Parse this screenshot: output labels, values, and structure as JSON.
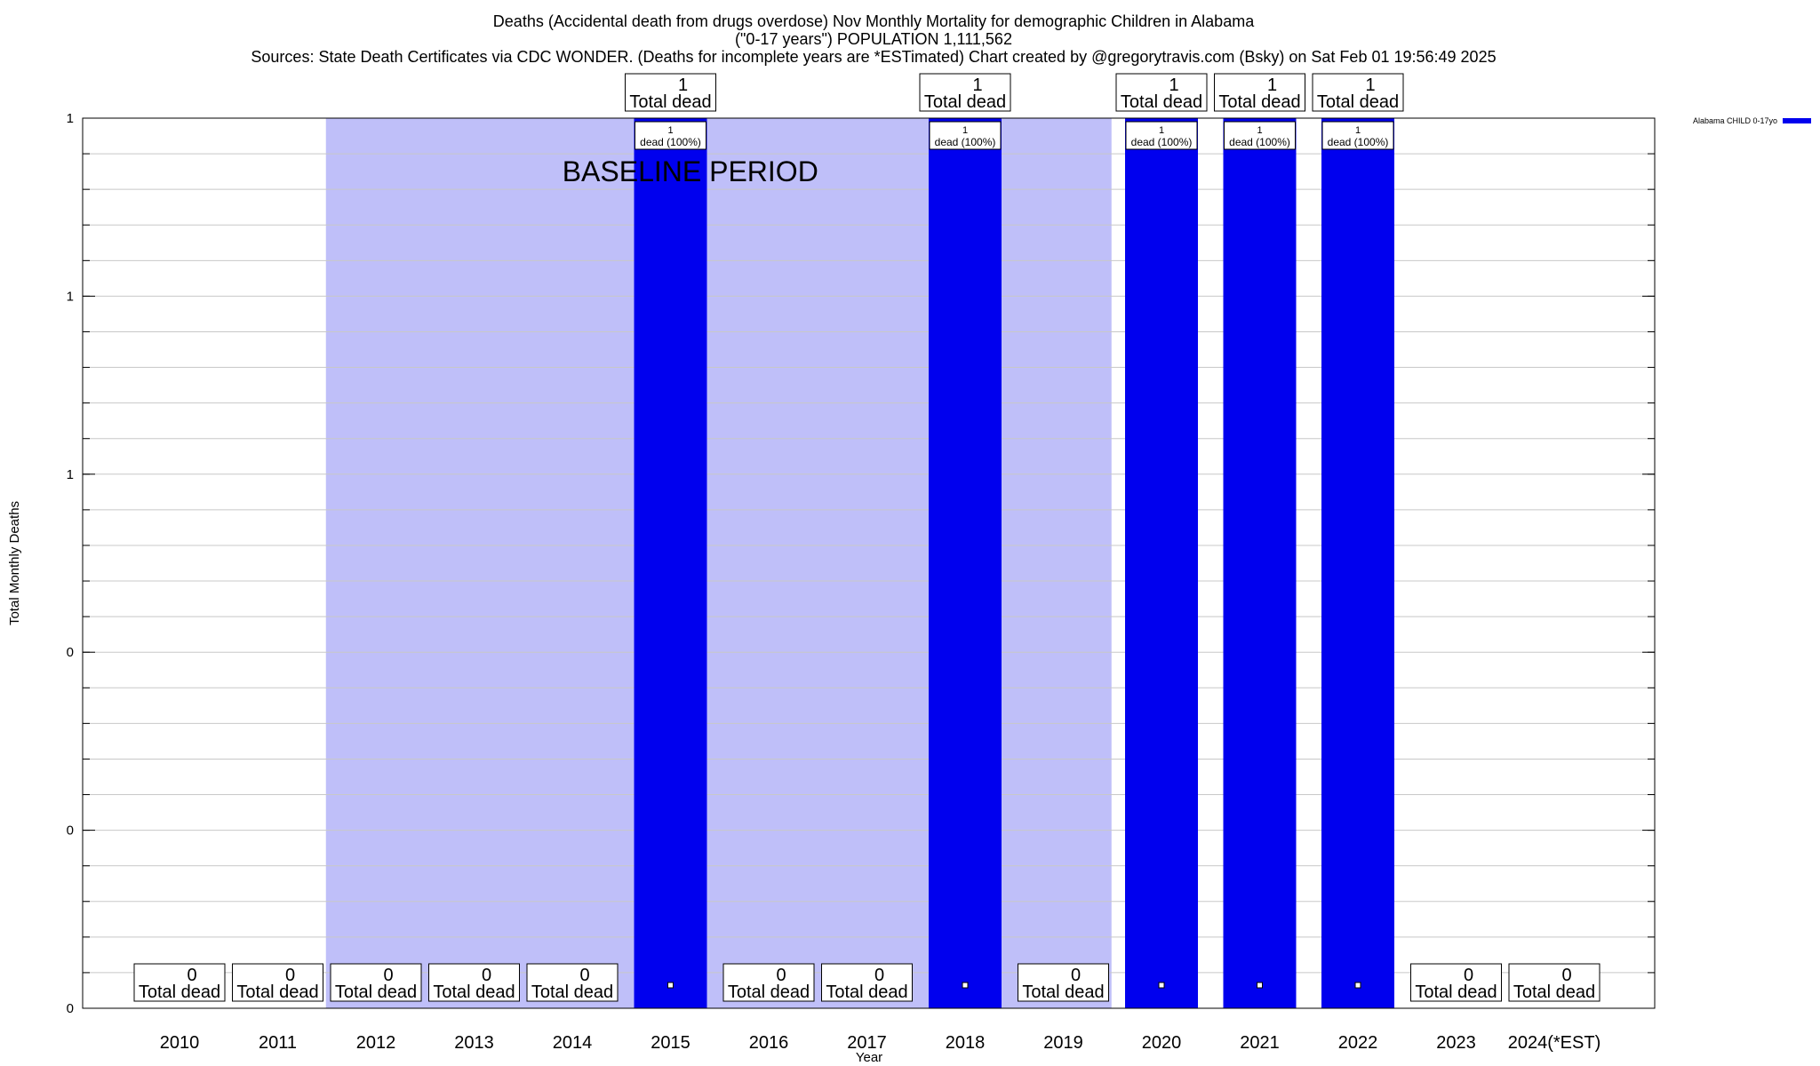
{
  "header": {
    "title_line1": "Deaths (Accidental death from drugs overdose) Nov Monthly Mortality for demographic Children in Alabama",
    "title_line2": "(\"0-17 years\") POPULATION 1,111,562",
    "title_line3": "Sources: State Death Certificates via CDC WONDER. (Deaths for incomplete years are *ESTimated)          Chart created by @gregorytravis.com (Bsky) on Sat Feb 01 19:56:49 2025"
  },
  "legend": {
    "label": "Alabama CHILD 0-17yo"
  },
  "colors": {
    "bar": "#0000ee",
    "baseline_band": "#bfbff9",
    "grid": "#c8c8c8"
  },
  "chart_data": {
    "type": "bar",
    "title": "Deaths (Accidental death from drugs overdose) Nov Monthly Mortality for demographic Children in Alabama",
    "xlabel": "Year",
    "ylabel": "Total Monthly Deaths",
    "categories": [
      "2010",
      "2011",
      "2012",
      "2013",
      "2014",
      "2015",
      "2016",
      "2017",
      "2018",
      "2019",
      "2020",
      "2021",
      "2022",
      "2023",
      "2024(*EST)"
    ],
    "series": [
      {
        "name": "Alabama CHILD 0-17yo",
        "values": [
          0,
          0,
          0,
          0,
          0,
          1,
          0,
          0,
          1,
          0,
          1,
          1,
          1,
          0,
          0
        ]
      }
    ],
    "ylim": [
      0,
      1
    ],
    "ytick_values": [
      0,
      0.2,
      0.4,
      0.6,
      0.8,
      1
    ],
    "ytick_labels": [
      "0",
      "0",
      "0",
      "1",
      "1",
      "1"
    ],
    "total_label_suffix": "Total dead",
    "bar_label_suffix": "dead (100%)",
    "baseline_period": {
      "label": "BASELINE PERIOD",
      "start": "2012",
      "end": "2019"
    },
    "grid": true,
    "legend_position": "top-right"
  }
}
